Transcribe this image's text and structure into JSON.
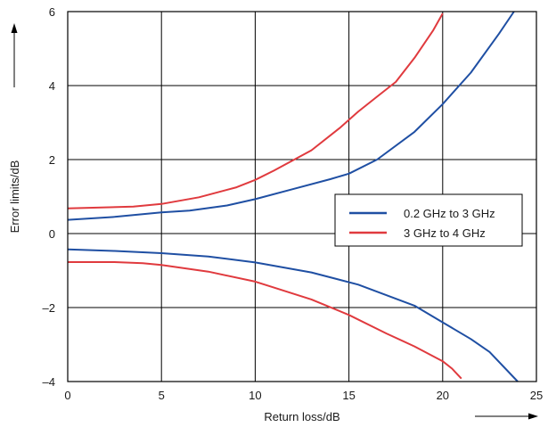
{
  "chart_data": {
    "type": "line",
    "title": "",
    "xlabel": "Return loss/dB",
    "ylabel": "Error limits/dB",
    "xlim": [
      0,
      25
    ],
    "ylim": [
      -4,
      6
    ],
    "x_ticks": [
      "0",
      "5",
      "10",
      "15",
      "20",
      "25"
    ],
    "y_ticks": [
      "–4",
      "–2",
      "0",
      "2",
      "4",
      "6"
    ],
    "grid": true,
    "legend_position": "right",
    "series": [
      {
        "name": "0.2 GHz to 3 GHz",
        "color": "#1f4fa3",
        "upper": [
          [
            0,
            0.37
          ],
          [
            2.5,
            0.45
          ],
          [
            5,
            0.57
          ],
          [
            6.5,
            0.62
          ],
          [
            8.5,
            0.76
          ],
          [
            10,
            0.93
          ],
          [
            12,
            1.2
          ],
          [
            14,
            1.47
          ],
          [
            15,
            1.62
          ],
          [
            16.5,
            2.0
          ],
          [
            18.5,
            2.75
          ],
          [
            20,
            3.5
          ],
          [
            21.5,
            4.35
          ],
          [
            23,
            5.4
          ],
          [
            23.8,
            6.0
          ]
        ],
        "lower": [
          [
            0,
            -0.43
          ],
          [
            2.5,
            -0.47
          ],
          [
            5,
            -0.53
          ],
          [
            7.5,
            -0.62
          ],
          [
            10,
            -0.78
          ],
          [
            13,
            -1.05
          ],
          [
            15.5,
            -1.38
          ],
          [
            18.5,
            -1.95
          ],
          [
            20,
            -2.4
          ],
          [
            21.5,
            -2.85
          ],
          [
            22.5,
            -3.2
          ],
          [
            24,
            -4.0
          ]
        ]
      },
      {
        "name": "3 GHz to 4 GHz",
        "color": "#e03a3e",
        "upper": [
          [
            0,
            0.68
          ],
          [
            3.5,
            0.73
          ],
          [
            5,
            0.8
          ],
          [
            7,
            0.98
          ],
          [
            9,
            1.25
          ],
          [
            10,
            1.45
          ],
          [
            11,
            1.7
          ],
          [
            13,
            2.25
          ],
          [
            14.5,
            2.85
          ],
          [
            15.5,
            3.3
          ],
          [
            16.5,
            3.7
          ],
          [
            17.5,
            4.1
          ],
          [
            18.5,
            4.75
          ],
          [
            19.5,
            5.5
          ],
          [
            20,
            5.95
          ]
        ],
        "lower": [
          [
            0,
            -0.77
          ],
          [
            2.5,
            -0.77
          ],
          [
            4,
            -0.8
          ],
          [
            5,
            -0.85
          ],
          [
            7.5,
            -1.03
          ],
          [
            10,
            -1.3
          ],
          [
            11,
            -1.46
          ],
          [
            13,
            -1.78
          ],
          [
            15,
            -2.2
          ],
          [
            17,
            -2.7
          ],
          [
            18.5,
            -3.05
          ],
          [
            20,
            -3.45
          ],
          [
            20.5,
            -3.65
          ],
          [
            21,
            -3.92
          ]
        ]
      }
    ]
  }
}
